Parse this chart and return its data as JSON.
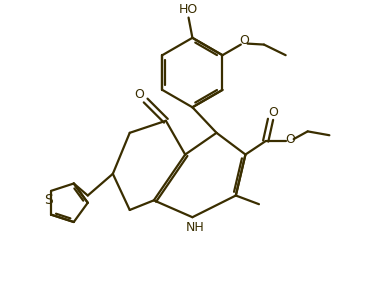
{
  "background_color": "#ffffff",
  "line_color": "#3a2e00",
  "line_width": 1.6,
  "font_size": 9,
  "figsize": [
    3.8,
    3.03
  ],
  "dpi": 100,
  "xlim": [
    -2.8,
    3.2
  ],
  "ylim": [
    -1.0,
    5.2
  ]
}
